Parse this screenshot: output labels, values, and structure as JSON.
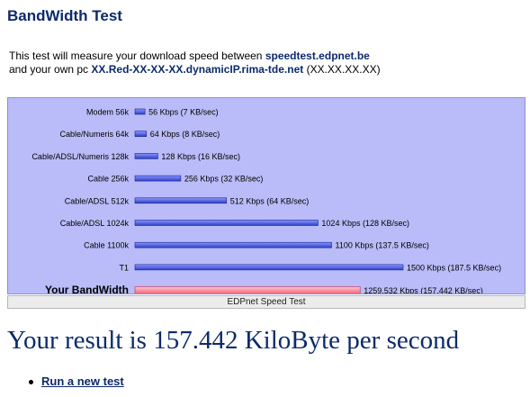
{
  "page": {
    "title": "BandWidth Test"
  },
  "intro": {
    "line1_text": "This test will measure your download speed between ",
    "server_host": "speedtest.edpnet.be",
    "line2_text": "and your own pc ",
    "client_host": "XX.Red-XX-XX-XX.dynamicIP.rima-tde.net",
    "client_ip": "(XX.XX.XX.XX)"
  },
  "chart_data": {
    "type": "bar",
    "orientation": "horizontal",
    "title": "",
    "xlabel": "",
    "ylabel": "",
    "caption": "EDPnet Speed Test",
    "categories": [
      "Modem 56k",
      "Cable/Numeris 64k",
      "Cable/ADSL/Numeris 128k",
      "Cable 256k",
      "Cable/ADSL 512k",
      "Cable/ADSL 1024k",
      "Cable 1100k",
      "T1",
      "Your BandWidth"
    ],
    "values": [
      56,
      64,
      128,
      256,
      512,
      1024,
      1100,
      1500,
      1259.532
    ],
    "value_labels": [
      "56 Kbps (7 KB/sec)",
      "64 Kbps (8 KB/sec)",
      "128 Kbps (16 KB/sec)",
      "256 Kbps (32 KB/sec)",
      "512 Kbps (64 KB/sec)",
      "1024 Kbps (128 KB/sec)",
      "1100 Kbps (137.5 KB/sec)",
      "1500 Kbps (187.5 KB/sec)",
      "1259.532 Kbps (157.442 KB/sec)"
    ],
    "highlight_category": "Your BandWidth",
    "xlim": [
      0,
      1500
    ],
    "unit": "Kbps",
    "grid": false,
    "legend": "none",
    "colors": {
      "background": "#b9bcf8",
      "reference_bar": "#2f3fc8",
      "reference_bar_light": "#8a96ff",
      "user_bar": "#f0627a",
      "user_bar_light": "#ffc4cc"
    }
  },
  "result": {
    "text": "Your result is 157.442 KiloByte per second"
  },
  "links": [
    {
      "label": "Run a new test",
      "icon": "bullet-icon"
    }
  ]
}
